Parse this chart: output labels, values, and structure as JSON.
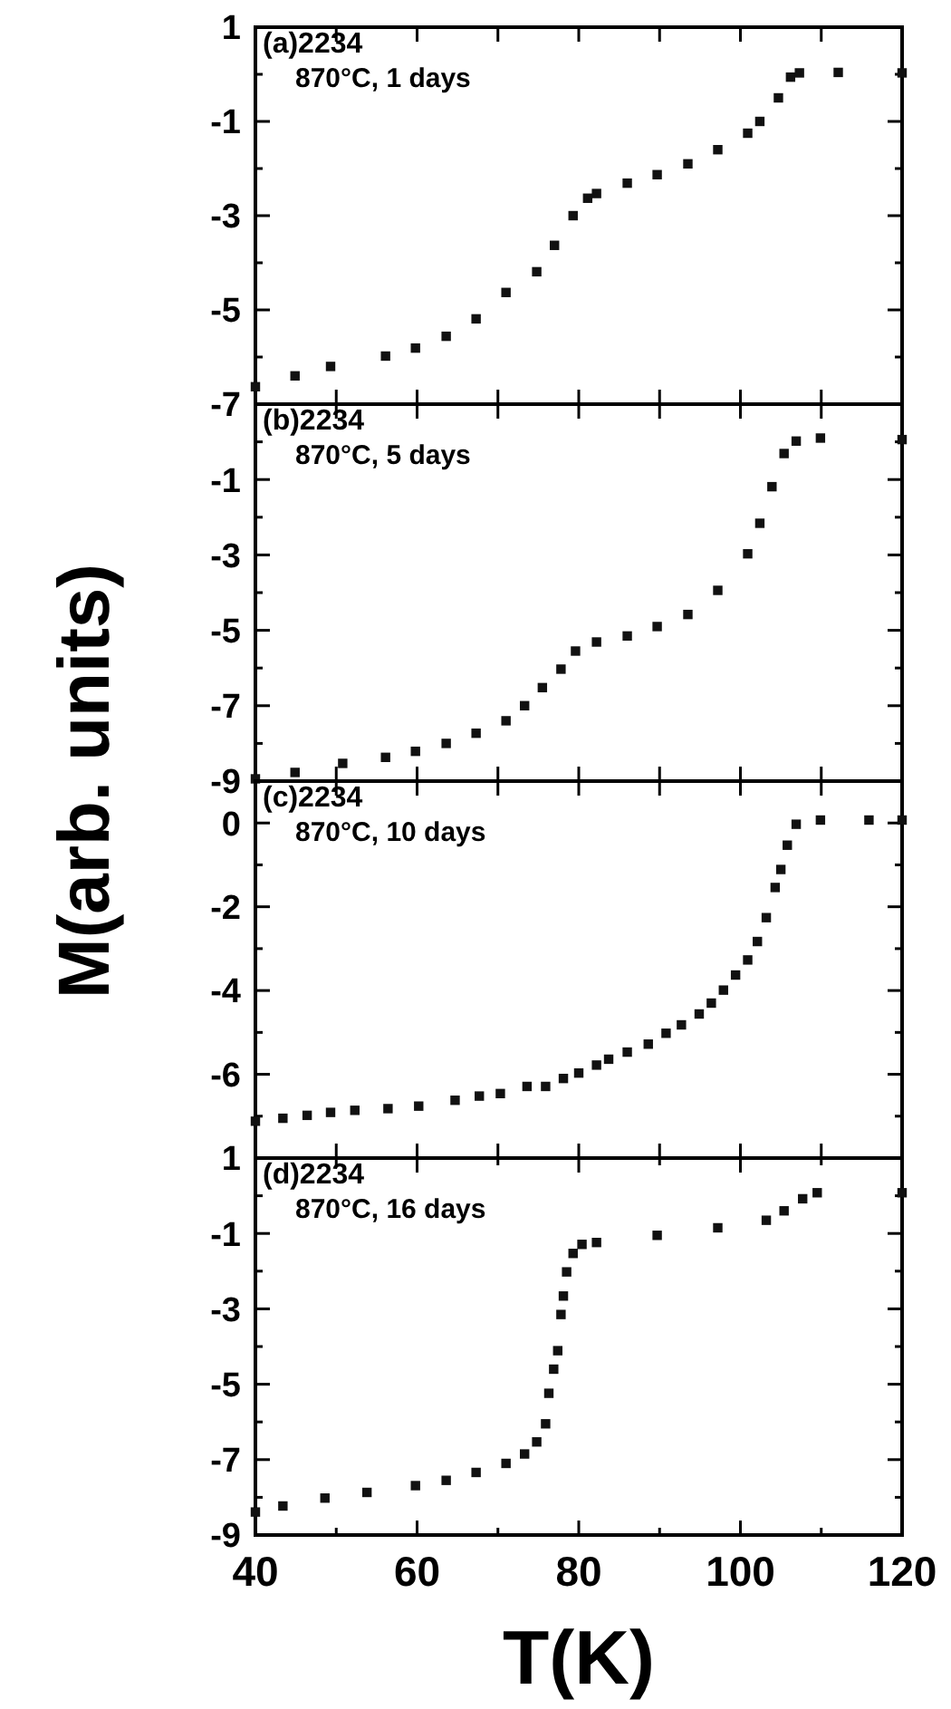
{
  "chart_data": [
    {
      "type": "scatter",
      "marker": "square",
      "ylabel": "M(arb. units)",
      "annotations": [
        "(a)2234",
        "870°C, 1 days"
      ],
      "xlim": [
        40,
        120
      ],
      "xticks": [
        40,
        50,
        60,
        70,
        80,
        90,
        100,
        110,
        120
      ],
      "ylim": [
        -7,
        1
      ],
      "yticks": [
        1,
        {
          "value": 0,
          "label": null
        },
        -1,
        {
          "value": -2,
          "label": null
        },
        -3,
        {
          "value": -4,
          "label": null
        },
        -5,
        {
          "value": -6,
          "label": null
        },
        -7
      ],
      "tick_labels": "y",
      "series": [
        {
          "color": "#111111",
          "x": [
            40,
            44.9,
            49.3,
            56.1,
            59.8,
            63.6,
            67.3,
            71.0,
            74.8,
            77.0,
            79.3,
            81.1,
            82.2,
            86.0,
            89.7,
            93.5,
            97.2,
            100.9,
            102.4,
            104.7,
            106.2,
            107.3,
            112.1,
            120
          ],
          "values": [
            -6.63,
            -6.4,
            -6.2,
            -5.98,
            -5.81,
            -5.56,
            -5.19,
            -4.63,
            -4.19,
            -3.63,
            -3.0,
            -2.63,
            -2.53,
            -2.31,
            -2.13,
            -1.9,
            -1.6,
            -1.25,
            -1.0,
            -0.5,
            -0.06,
            0.03,
            0.04,
            0.03
          ]
        }
      ]
    },
    {
      "type": "scatter",
      "marker": "square",
      "annotations": [
        "(b)2234",
        "870°C, 5 days"
      ],
      "xlim": [
        40,
        120
      ],
      "xticks": [
        40,
        50,
        60,
        70,
        80,
        90,
        100,
        110,
        120
      ],
      "ylim": [
        -9,
        1
      ],
      "yticks": [
        {
          "value": 1,
          "label": null
        },
        {
          "value": 0,
          "label": null
        },
        -1,
        {
          "value": -2,
          "label": null
        },
        -3,
        {
          "value": -4,
          "label": null
        },
        -5,
        {
          "value": -6,
          "label": null
        },
        -7,
        {
          "value": -8,
          "label": null
        },
        -9
      ],
      "tick_labels": "y",
      "series": [
        {
          "color": "#111111",
          "x": [
            40,
            44.9,
            50.8,
            56.1,
            59.8,
            63.6,
            67.3,
            71.0,
            73.3,
            75.5,
            77.8,
            79.6,
            82.2,
            86.0,
            89.7,
            93.5,
            97.2,
            100.9,
            102.4,
            103.9,
            105.4,
            106.9,
            109.9,
            120
          ],
          "values": [
            -8.94,
            -8.77,
            -8.53,
            -8.37,
            -8.21,
            -8.0,
            -7.73,
            -7.4,
            -7.0,
            -6.52,
            -6.03,
            -5.55,
            -5.31,
            -5.15,
            -4.9,
            -4.58,
            -3.94,
            -2.97,
            -2.16,
            -1.19,
            -0.31,
            0.02,
            0.1,
            0.06
          ]
        }
      ]
    },
    {
      "type": "scatter",
      "marker": "square",
      "annotations": [
        "(c)2234",
        "870°C, 10 days"
      ],
      "xlim": [
        40,
        120
      ],
      "xticks": [
        40,
        50,
        60,
        70,
        80,
        90,
        100,
        110,
        120
      ],
      "ylim": [
        -8,
        1
      ],
      "yticks": [
        {
          "value": 1,
          "label": null
        },
        0,
        {
          "value": -1,
          "label": null
        },
        -2,
        {
          "value": -3,
          "label": null
        },
        -4,
        {
          "value": -5,
          "label": null
        },
        -6,
        {
          "value": -7,
          "label": null
        }
      ],
      "tick_labels": "y",
      "series": [
        {
          "color": "#111111",
          "x": [
            40,
            43.4,
            46.4,
            49.3,
            52.3,
            56.4,
            60.2,
            64.7,
            67.7,
            70.3,
            73.6,
            75.9,
            78.1,
            80.0,
            82.2,
            83.7,
            86.0,
            88.6,
            90.8,
            92.7,
            94.9,
            96.4,
            97.9,
            99.4,
            100.9,
            102.1,
            103.2,
            104.3,
            105.0,
            105.8,
            106.9,
            109.9,
            115.9,
            120
          ],
          "values": [
            -7.12,
            -7.05,
            -6.98,
            -6.91,
            -6.86,
            -6.82,
            -6.76,
            -6.62,
            -6.52,
            -6.46,
            -6.29,
            -6.29,
            -6.1,
            -5.97,
            -5.78,
            -5.64,
            -5.47,
            -5.28,
            -5.02,
            -4.82,
            -4.56,
            -4.3,
            -3.99,
            -3.63,
            -3.27,
            -2.83,
            -2.26,
            -1.54,
            -1.11,
            -0.53,
            -0.03,
            0.07,
            0.07,
            0.07
          ]
        }
      ]
    },
    {
      "type": "scatter",
      "marker": "square",
      "xlabel": "T(K)",
      "annotations": [
        "(d)2234",
        "870°C, 16 days"
      ],
      "xlim": [
        40,
        120
      ],
      "xticks": [
        40,
        {
          "value": 50,
          "label": null
        },
        60,
        {
          "value": 70,
          "label": null
        },
        80,
        {
          "value": 90,
          "label": null
        },
        100,
        {
          "value": 110,
          "label": null
        },
        120
      ],
      "ylim": [
        -9,
        1
      ],
      "yticks": [
        1,
        {
          "value": 0,
          "label": null
        },
        -1,
        {
          "value": -2,
          "label": null
        },
        -3,
        {
          "value": -4,
          "label": null
        },
        -5,
        {
          "value": -6,
          "label": null
        },
        -7,
        {
          "value": -8,
          "label": null
        },
        -9
      ],
      "series": [
        {
          "color": "#111111",
          "x": [
            40,
            43.4,
            48.6,
            53.8,
            59.8,
            63.6,
            67.3,
            71.0,
            73.3,
            74.8,
            75.9,
            76.3,
            76.9,
            77.4,
            77.8,
            78.1,
            78.5,
            79.3,
            80.4,
            82.2,
            89.7,
            97.2,
            103.2,
            105.4,
            107.7,
            109.5,
            120
          ],
          "values": [
            -8.39,
            -8.23,
            -8.02,
            -7.87,
            -7.69,
            -7.55,
            -7.34,
            -7.1,
            -6.85,
            -6.53,
            -6.05,
            -5.24,
            -4.6,
            -4.11,
            -3.15,
            -2.66,
            -2.02,
            -1.53,
            -1.29,
            -1.24,
            -1.05,
            -0.85,
            -0.65,
            -0.4,
            -0.08,
            0.08,
            0.08
          ]
        }
      ]
    }
  ]
}
